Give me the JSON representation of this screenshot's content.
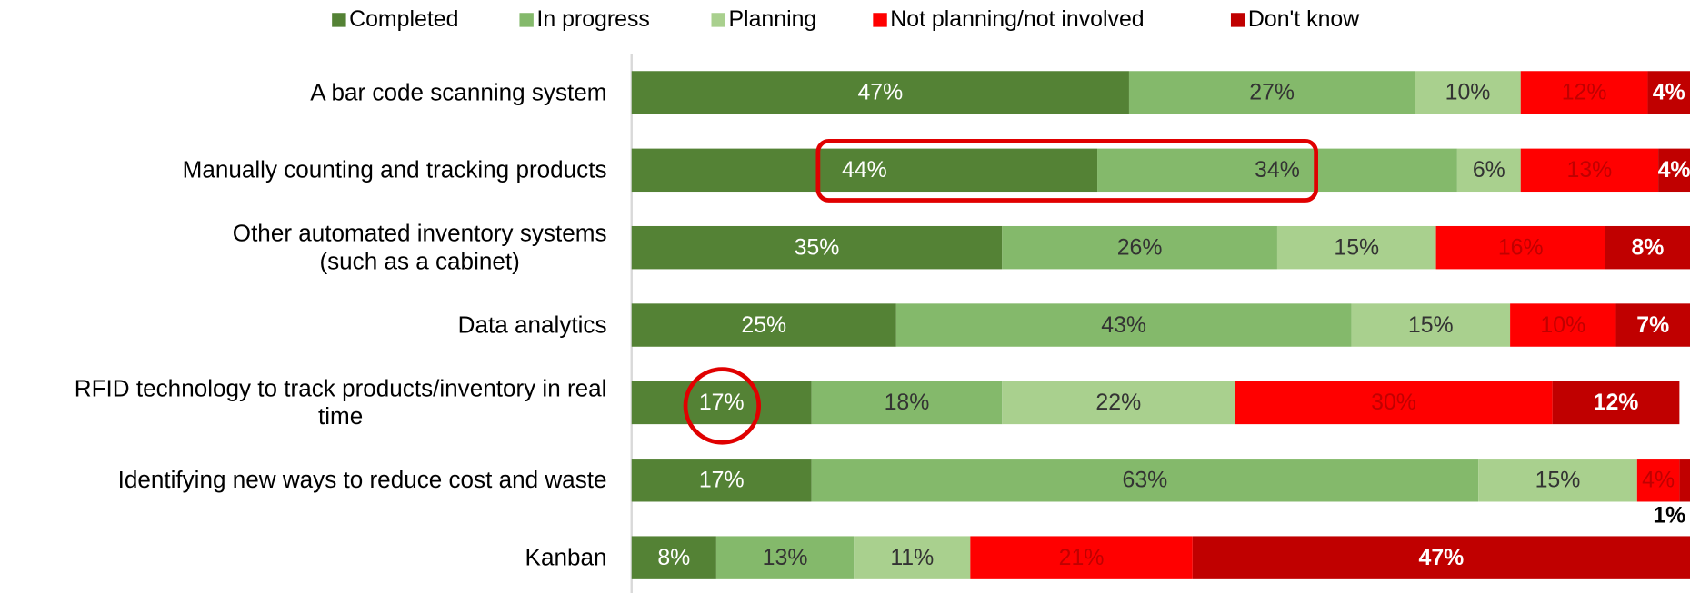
{
  "chart_data": {
    "type": "stacked_bar_horizontal",
    "categories": [
      "A bar code scanning system",
      "Manually counting and tracking products",
      "Other automated inventory systems\n(such as a cabinet)",
      "Data analytics",
      "RFID technology to track products/inventory in real\ntime",
      "Identifying new ways to reduce cost and waste",
      "Kanban"
    ],
    "xlim": [
      0,
      100
    ],
    "legend": "top",
    "series": [
      {
        "name": "Completed",
        "color": "#548235",
        "values": [
          47,
          44,
          35,
          25,
          17,
          17,
          8
        ],
        "value_labels": [
          "47%",
          "44%",
          "35%",
          "25%",
          "17%",
          "17%",
          "8%"
        ]
      },
      {
        "name": "In progress",
        "color": "#84b96b",
        "values": [
          27,
          34,
          26,
          43,
          18,
          63,
          13
        ],
        "value_labels": [
          "27%",
          "34%",
          "26%",
          "43%",
          "18%",
          "63%",
          "13%"
        ]
      },
      {
        "name": "Planning",
        "color": "#a9d08e",
        "values": [
          10,
          6,
          15,
          15,
          22,
          15,
          11
        ],
        "value_labels": [
          "10%",
          "6%",
          "15%",
          "15%",
          "22%",
          "15%",
          "11%"
        ]
      },
      {
        "name": "Not planning/not involved",
        "color": "#ff0000",
        "values": [
          12,
          13,
          16,
          10,
          30,
          4,
          21
        ],
        "value_labels": [
          "12%",
          "13%",
          "16%",
          "10%",
          "30%",
          "4%",
          "21%"
        ]
      },
      {
        "name": "Don't know",
        "color": "#c00000",
        "values": [
          4,
          4,
          8,
          7,
          12,
          1,
          47
        ],
        "value_labels": [
          "4%",
          "4%",
          "8%",
          "7%",
          "12%",
          "1%",
          "47%"
        ]
      }
    ]
  }
}
